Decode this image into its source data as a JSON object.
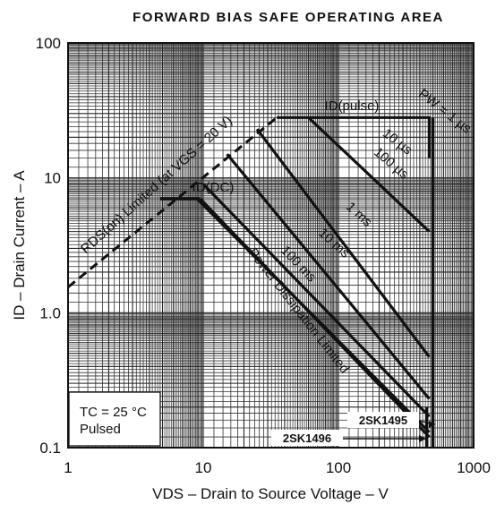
{
  "chart_data": {
    "type": "line",
    "title": "FORWARD BIAS SAFE OPERATING AREA",
    "xlabel": "VDS – Drain to Source Voltage – V",
    "ylabel": "ID – Drain Current – A",
    "xscale": "log",
    "yscale": "log",
    "xlim": [
      1,
      1000
    ],
    "ylim": [
      0.1,
      100
    ],
    "grid": true,
    "xticks": [
      "1",
      "10",
      "100",
      "1000"
    ],
    "yticks": [
      "100",
      "10",
      "1.0",
      "0.1"
    ],
    "series": [
      {
        "name": "RDS(on) Limited (at VGS = 20 V)",
        "style": "dashed",
        "x": [
          1,
          35
        ],
        "y": [
          1.55,
          28
        ]
      },
      {
        "name": "ID(pulse)",
        "x": [
          35,
          480
        ],
        "y": [
          28,
          28
        ]
      },
      {
        "name": "ID(DC)",
        "x": [
          4.8,
          9.5
        ],
        "y": [
          7,
          7
        ]
      },
      {
        "name": "PW = 1 µs",
        "x": [
          470,
          470
        ],
        "y": [
          28,
          14
        ]
      },
      {
        "name": "10 µs",
        "x": [
          60,
          470
        ],
        "y": [
          28,
          4
        ]
      },
      {
        "name": "100 µs",
        "x": [
          25,
          470
        ],
        "y": [
          23,
          0.47
        ]
      },
      {
        "name": "1 ms",
        "x": [
          15,
          470
        ],
        "y": [
          15,
          0.23
        ]
      },
      {
        "name": "10 ms",
        "x": [
          10,
          470
        ],
        "y": [
          9,
          0.17
        ]
      },
      {
        "name": "100 ms",
        "x": [
          9,
          470
        ],
        "y": [
          7,
          0.13
        ]
      },
      {
        "name": "Power Dissipation Limited",
        "x": [
          9.5,
          470
        ],
        "y": [
          7,
          0.12
        ]
      },
      {
        "name": "2SK1496",
        "x": [
          450,
          450
        ],
        "y": [
          0.2,
          0.1
        ]
      },
      {
        "name": "2SK1495",
        "x": [
          500,
          500
        ],
        "y": [
          28,
          0.1
        ]
      }
    ],
    "annotations": [
      {
        "text": "RDS(on) Limited (at VGS = 20 V)"
      },
      {
        "text": "ID(pulse)"
      },
      {
        "text": "ID(DC)"
      },
      {
        "text": "PW = 1 µs"
      },
      {
        "text": "10 µs"
      },
      {
        "text": "100 µs"
      },
      {
        "text": "1 ms"
      },
      {
        "text": "10 ms"
      },
      {
        "text": "100 ms"
      },
      {
        "text": "Power Dissipation Limited"
      },
      {
        "text": "2SK1495"
      },
      {
        "text": "2SK1496"
      }
    ],
    "legend": {
      "line1": "TC = 25 °C",
      "line2": "Pulsed",
      "placement": "bottom-left"
    }
  }
}
